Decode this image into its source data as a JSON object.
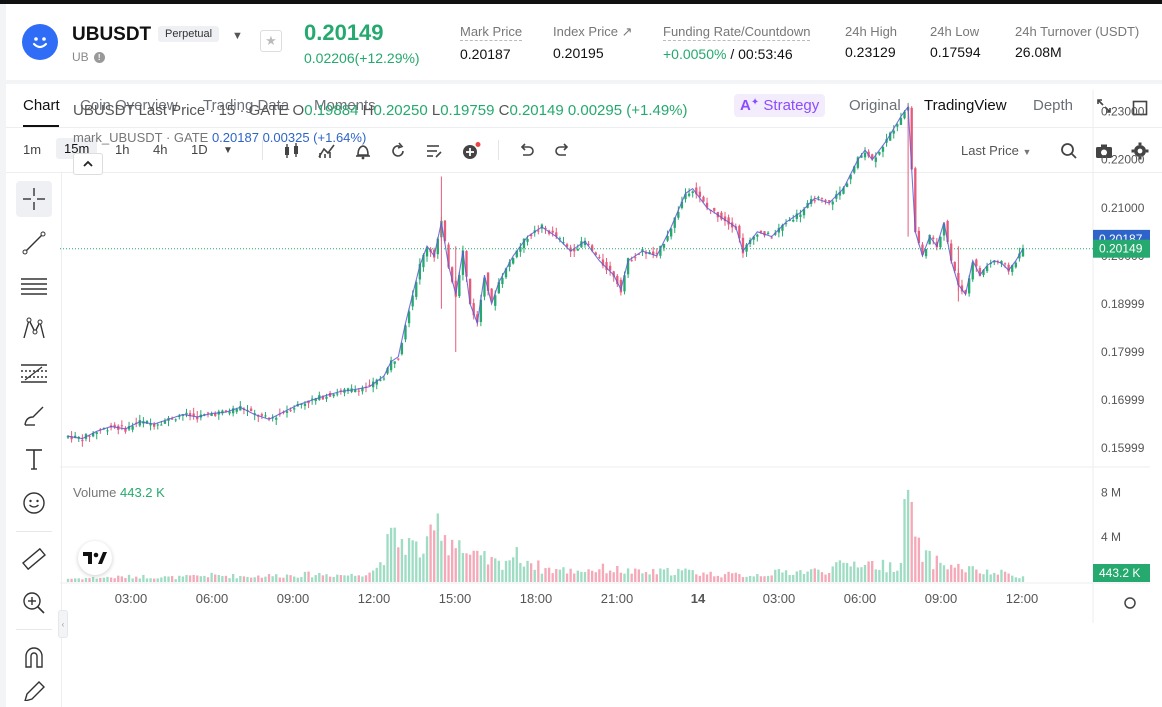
{
  "header": {
    "symbol": "UBUSDT",
    "contract_type": "Perpetual",
    "base": "UB",
    "last_price": "0.20149",
    "change": "0.02206(+12.29%)",
    "stats": [
      {
        "label": "Mark Price",
        "value": "0.20187"
      },
      {
        "label": "Index Price ↗",
        "value": "0.20195"
      },
      {
        "label": "Funding Rate/Countdown",
        "value_green": "+0.0050%",
        "value": " / 00:53:46"
      },
      {
        "label": "24h High",
        "value": "0.23129"
      },
      {
        "label": "24h Low",
        "value": "0.17594"
      },
      {
        "label": "24h Turnover (USDT)",
        "value": "26.08M"
      }
    ]
  },
  "tabs": [
    "Chart",
    "Coin Overview",
    "Trading Data",
    "Moments"
  ],
  "view_tabs": {
    "strategy": "Strategy",
    "original": "Original",
    "tradingview": "TradingView",
    "depth": "Depth"
  },
  "timeframes": [
    "1m",
    "15m",
    "1h",
    "4h",
    "1D"
  ],
  "active_timeframe": "15m",
  "price_source": "Last Price",
  "legend": {
    "title": "UBUSDT Last Price · 15 · GATE",
    "o_label": "O",
    "o": "0.19884",
    "h_label": "H",
    "h": "0.20250",
    "l_label": "L",
    "l": "0.19759",
    "c_label": "C",
    "c": "0.20149",
    "chg": "0.00295 (+1.49%)",
    "mark_title": "mark_UBUSDT · GATE",
    "mark_value": "0.20187",
    "mark_chg": "0.00325 (+1.64%)",
    "volume_label": "Volume",
    "volume_value": "443.2 K"
  },
  "chart_data": {
    "type": "candlestick",
    "price_axis": [
      "0.23000",
      "0.22000",
      "0.21000",
      "0.20000",
      "0.18999",
      "0.17999",
      "0.16999",
      "0.15999"
    ],
    "ylim": [
      0.1565,
      0.2345
    ],
    "mark_price_tag": "0.20187",
    "last_price_tag": "0.20149",
    "volume_axis": [
      "8 M",
      "4 M"
    ],
    "volume_tag": "443.2 K",
    "time_axis": [
      "03:00",
      "06:00",
      "09:00",
      "12:00",
      "15:00",
      "18:00",
      "21:00",
      "14",
      "03:00",
      "06:00",
      "09:00",
      "12:00"
    ],
    "colors": {
      "up": "#25a96e",
      "down": "#e85a7a",
      "up_vol": "#9fdcc4",
      "down_vol": "#f5a9b8",
      "mark_line": "#5b5bd6"
    },
    "close_path": [
      [
        0,
        0.1625
      ],
      [
        4,
        0.162
      ],
      [
        8,
        0.1635
      ],
      [
        12,
        0.1645
      ],
      [
        16,
        0.164
      ],
      [
        20,
        0.1655
      ],
      [
        24,
        0.165
      ],
      [
        28,
        0.166
      ],
      [
        32,
        0.167
      ],
      [
        36,
        0.1665
      ],
      [
        40,
        0.1672
      ],
      [
        44,
        0.1675
      ],
      [
        48,
        0.1685
      ],
      [
        52,
        0.167
      ],
      [
        56,
        0.166
      ],
      [
        60,
        0.1675
      ],
      [
        64,
        0.169
      ],
      [
        68,
        0.17
      ],
      [
        72,
        0.171
      ],
      [
        76,
        0.1718
      ],
      [
        80,
        0.1722
      ],
      [
        84,
        0.1728
      ],
      [
        88,
        0.175
      ],
      [
        90,
        0.178
      ],
      [
        92,
        0.179
      ],
      [
        94,
        0.186
      ],
      [
        96,
        0.192
      ],
      [
        98,
        0.198
      ],
      [
        100,
        0.202
      ],
      [
        102,
        0.2
      ],
      [
        104,
        0.207
      ],
      [
        106,
        0.198
      ],
      [
        108,
        0.192
      ],
      [
        110,
        0.201
      ],
      [
        112,
        0.19
      ],
      [
        114,
        0.186
      ],
      [
        116,
        0.196
      ],
      [
        118,
        0.19
      ],
      [
        120,
        0.1945
      ],
      [
        124,
        0.2
      ],
      [
        128,
        0.204
      ],
      [
        132,
        0.206
      ],
      [
        136,
        0.204
      ],
      [
        140,
        0.201
      ],
      [
        144,
        0.203
      ],
      [
        148,
        0.199
      ],
      [
        152,
        0.196
      ],
      [
        154,
        0.193
      ],
      [
        156,
        0.199
      ],
      [
        160,
        0.201
      ],
      [
        164,
        0.2
      ],
      [
        168,
        0.206
      ],
      [
        172,
        0.213
      ],
      [
        174,
        0.214
      ],
      [
        178,
        0.21
      ],
      [
        182,
        0.208
      ],
      [
        186,
        0.206
      ],
      [
        188,
        0.201
      ],
      [
        192,
        0.205
      ],
      [
        196,
        0.204
      ],
      [
        200,
        0.207
      ],
      [
        204,
        0.209
      ],
      [
        208,
        0.212
      ],
      [
        212,
        0.211
      ],
      [
        216,
        0.214
      ],
      [
        220,
        0.22
      ],
      [
        222,
        0.222
      ],
      [
        224,
        0.22
      ],
      [
        228,
        0.224
      ],
      [
        232,
        0.229
      ],
      [
        234,
        0.231
      ],
      [
        236,
        0.205
      ],
      [
        238,
        0.2
      ],
      [
        240,
        0.204
      ],
      [
        242,
        0.202
      ],
      [
        244,
        0.207
      ],
      [
        246,
        0.199
      ],
      [
        248,
        0.194
      ],
      [
        250,
        0.192
      ],
      [
        252,
        0.199
      ],
      [
        254,
        0.196
      ],
      [
        256,
        0.198
      ],
      [
        258,
        0.199
      ],
      [
        260,
        0.1985
      ],
      [
        262,
        0.197
      ],
      [
        264,
        0.199
      ],
      [
        266,
        0.2015
      ]
    ],
    "volume_profile_M": [
      [
        0,
        0.3
      ],
      [
        10,
        0.4
      ],
      [
        20,
        0.5
      ],
      [
        30,
        0.4
      ],
      [
        40,
        0.6
      ],
      [
        50,
        0.5
      ],
      [
        60,
        0.6
      ],
      [
        70,
        0.7
      ],
      [
        80,
        0.6
      ],
      [
        86,
        1.2
      ],
      [
        90,
        3.8
      ],
      [
        94,
        3.6
      ],
      [
        96,
        3.2
      ],
      [
        98,
        2.8
      ],
      [
        100,
        3.0
      ],
      [
        104,
        5.8
      ],
      [
        106,
        3.0
      ],
      [
        108,
        4.6
      ],
      [
        110,
        2.8
      ],
      [
        112,
        2.2
      ],
      [
        116,
        2.0
      ],
      [
        120,
        1.6
      ],
      [
        124,
        2.4
      ],
      [
        128,
        2.0
      ],
      [
        132,
        1.2
      ],
      [
        140,
        1.0
      ],
      [
        150,
        1.2
      ],
      [
        160,
        0.8
      ],
      [
        170,
        1.0
      ],
      [
        180,
        0.7
      ],
      [
        190,
        0.6
      ],
      [
        200,
        0.9
      ],
      [
        210,
        1.0
      ],
      [
        220,
        1.8
      ],
      [
        228,
        1.4
      ],
      [
        232,
        1.6
      ],
      [
        234,
        9.4
      ],
      [
        236,
        3.2
      ],
      [
        240,
        2.0
      ],
      [
        246,
        1.4
      ],
      [
        250,
        1.2
      ],
      [
        256,
        0.8
      ],
      [
        260,
        0.8
      ],
      [
        266,
        0.5
      ]
    ],
    "candle_count": 267
  }
}
